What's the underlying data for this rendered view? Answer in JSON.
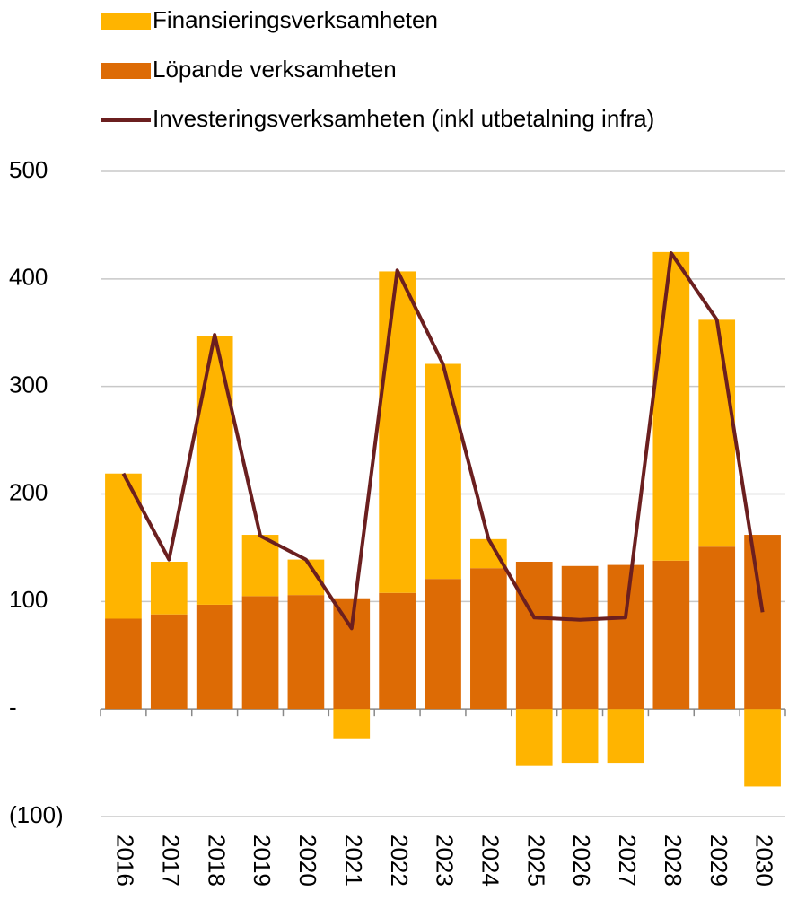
{
  "chart_data": {
    "type": "bar",
    "categories": [
      "2016",
      "2017",
      "2018",
      "2019",
      "2020",
      "2021",
      "2022",
      "2023",
      "2024",
      "2025",
      "2026",
      "2027",
      "2028",
      "2029",
      "2030"
    ],
    "series": [
      {
        "name": "Finansieringsverksamheten",
        "color": "#ffb400",
        "values": [
          135,
          49,
          250,
          57,
          33,
          -28,
          299,
          200,
          27,
          -53,
          -50,
          -50,
          287,
          211,
          -72
        ]
      },
      {
        "name": "Löpande verksamheten",
        "color": "#dd6b05",
        "values": [
          84,
          88,
          97,
          105,
          106,
          103,
          108,
          121,
          131,
          137,
          133,
          134,
          138,
          151,
          162
        ]
      },
      {
        "name": "Investeringsverksamheten (inkl utbetalning infra)",
        "color": "#6b1f1f",
        "type": "line",
        "values": [
          219,
          139,
          348,
          161,
          139,
          75,
          408,
          321,
          158,
          85,
          83,
          85,
          424,
          362,
          90
        ]
      }
    ],
    "stacked": true,
    "ylim": [
      -100,
      500
    ],
    "yticks": [
      {
        "value": -100,
        "label": "(100)"
      },
      {
        "value": 0,
        "label": "-"
      },
      100,
      200,
      300,
      400,
      500
    ],
    "grid": true,
    "legend": "top"
  }
}
